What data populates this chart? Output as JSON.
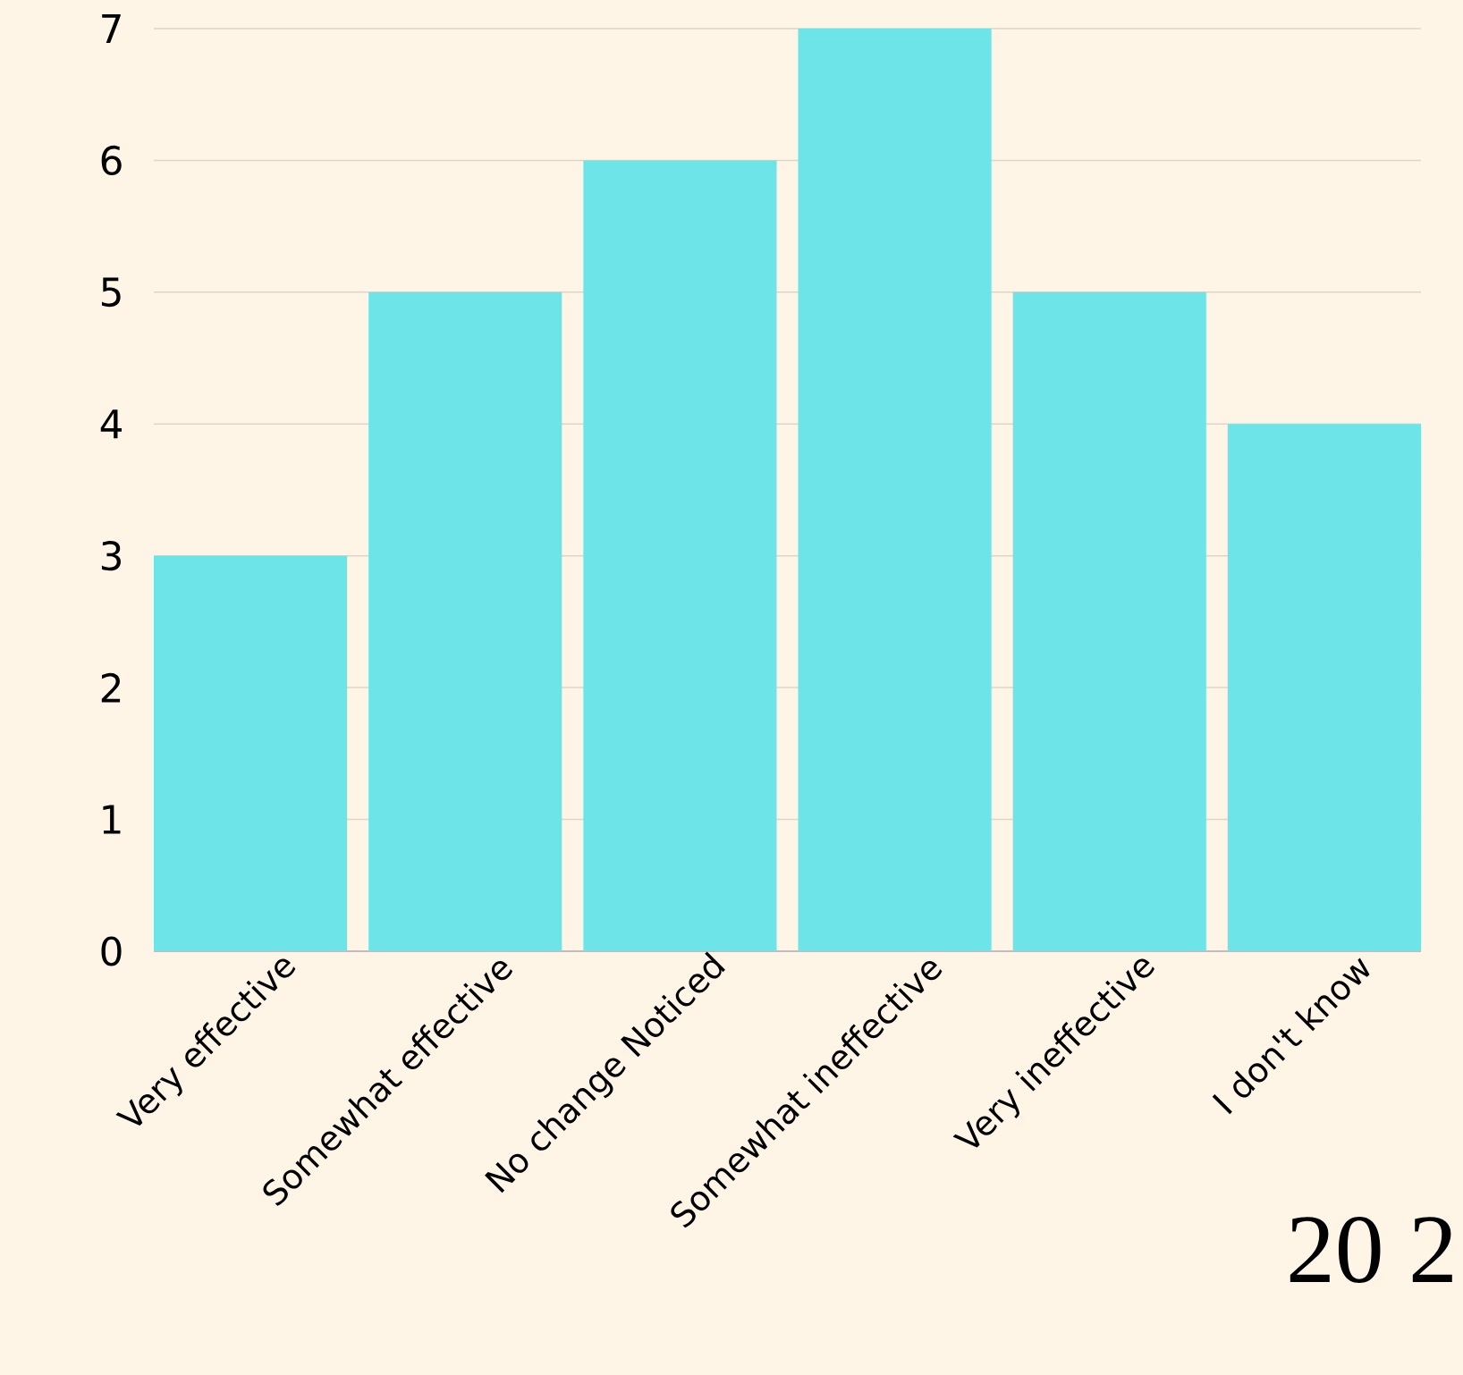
{
  "chart_data": {
    "type": "bar",
    "categories": [
      "Very effective",
      "Somewhat effective",
      "No change Noticed",
      "Somewhat ineffective",
      "Very ineffective",
      "I don't know"
    ],
    "values": [
      3,
      5,
      6,
      7,
      5,
      4
    ],
    "color": "#6ce4e8",
    "ylim": [
      0,
      7
    ],
    "yticks": [
      0,
      1,
      2,
      3,
      4,
      5,
      6,
      7
    ],
    "grid": "y",
    "annotations": [
      "20 2"
    ]
  }
}
